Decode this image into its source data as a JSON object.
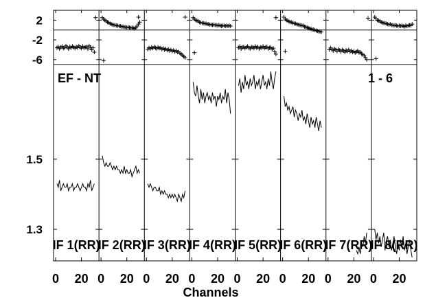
{
  "chart_data": {
    "type": "line",
    "annotation_left": "EF - NT",
    "annotation_right": "1 - 6",
    "xlabel": "Channels",
    "x_ticks": [
      "0",
      "20"
    ],
    "x_range": [
      0,
      32
    ],
    "phase_panel": {
      "ylim": [
        -7,
        4
      ],
      "y_ticks": [
        "2",
        "-2",
        "-6"
      ],
      "y_tick_values": [
        2,
        -2,
        -6
      ],
      "zero_line": 0
    },
    "amp_panel": {
      "ylim": [
        1.21,
        1.77
      ],
      "y_ticks": [
        "1.5",
        "1.3"
      ],
      "y_tick_values": [
        1.5,
        1.3
      ]
    },
    "series": [
      {
        "name": "IF 1(RR)",
        "amplitude": [
          1.43,
          1.42,
          1.44,
          1.41,
          1.42,
          1.43,
          1.42,
          1.42,
          1.43,
          1.41,
          1.42,
          1.42,
          1.43,
          1.41,
          1.42,
          1.42,
          1.43,
          1.42,
          1.41,
          1.42,
          1.43,
          1.42,
          1.42,
          1.41,
          1.43,
          1.42,
          1.44,
          1.41,
          1.42,
          1.43
        ],
        "phase": [
          -3.6,
          -3.4,
          -3.8,
          -3.5,
          -3.3,
          -3.7,
          -3.6,
          -3.2,
          -3.5,
          -3.8,
          -3.4,
          -3.6,
          -3.3,
          -3.5,
          -3.7,
          -3.4,
          -3.6,
          -3.2,
          -3.5,
          -3.7,
          -3.3,
          -3.6,
          -3.5,
          -3.4,
          -3.8,
          -3.2,
          -3.5,
          -4.0,
          -3.6,
          -4.5
        ],
        "phase_outliers": [
          {
            "x": 31,
            "y": 2.5
          }
        ]
      },
      {
        "name": "IF 2(RR)",
        "amplitude": [
          1.51,
          1.49,
          1.48,
          1.49,
          1.48,
          1.48,
          1.49,
          1.48,
          1.47,
          1.48,
          1.47,
          1.48,
          1.47,
          1.47,
          1.46,
          1.47,
          1.46,
          1.48,
          1.46,
          1.47,
          1.46,
          1.46,
          1.47,
          1.45,
          1.46,
          1.47,
          1.48,
          1.46,
          1.47,
          1.46
        ],
        "phase": [
          2.5,
          2.2,
          2.0,
          1.8,
          1.6,
          1.5,
          1.3,
          1.2,
          1.1,
          1.0,
          1.0,
          0.9,
          0.9,
          0.8,
          0.8,
          0.7,
          0.7,
          0.6,
          0.6,
          0.5,
          0.6,
          0.5,
          0.4,
          0.5,
          0.4,
          0.3,
          0.5,
          0.8,
          1.2,
          1.6
        ],
        "phase_outliers": [
          {
            "x": 2,
            "y": -6.2
          },
          {
            "x": 29,
            "y": 2.6
          }
        ]
      },
      {
        "name": "IF 3(RR)",
        "amplitude": [
          1.43,
          1.42,
          1.43,
          1.42,
          1.41,
          1.42,
          1.42,
          1.41,
          1.41,
          1.42,
          1.4,
          1.41,
          1.4,
          1.41,
          1.4,
          1.4,
          1.39,
          1.4,
          1.39,
          1.4,
          1.39,
          1.4,
          1.39,
          1.38,
          1.4,
          1.39,
          1.38,
          1.4,
          1.39,
          1.41
        ],
        "phase": [
          -3.9,
          -3.6,
          -3.8,
          -3.5,
          -3.7,
          -3.4,
          -3.6,
          -3.8,
          -3.5,
          -3.7,
          -3.6,
          -3.9,
          -3.7,
          -4.0,
          -3.8,
          -4.1,
          -3.9,
          -4.2,
          -4.0,
          -4.3,
          -4.1,
          -4.4,
          -4.2,
          -4.5,
          -4.4,
          -4.7,
          -4.9,
          -5.1,
          -5.4,
          -5.6
        ],
        "phase_outliers": [
          {
            "x": 30,
            "y": 2.6
          }
        ]
      },
      {
        "name": "IF 4(RR)",
        "amplitude": [
          1.72,
          1.69,
          1.68,
          1.71,
          1.68,
          1.66,
          1.7,
          1.67,
          1.69,
          1.66,
          1.68,
          1.69,
          1.67,
          1.68,
          1.66,
          1.69,
          1.67,
          1.68,
          1.65,
          1.68,
          1.67,
          1.69,
          1.66,
          1.68,
          1.67,
          1.7,
          1.66,
          1.69,
          1.67,
          1.63
        ],
        "phase": [
          2.5,
          2.2,
          2.0,
          1.9,
          1.8,
          1.6,
          1.5,
          1.4,
          1.4,
          1.3,
          1.3,
          1.2,
          1.2,
          1.1,
          1.1,
          1.0,
          1.1,
          1.0,
          1.0,
          0.9,
          1.0,
          0.9,
          0.8,
          0.9,
          0.9,
          0.8,
          0.9,
          0.8,
          0.9,
          0.8
        ],
        "phase_outliers": [
          {
            "x": 2,
            "y": -4.6
          }
        ]
      },
      {
        "name": "IF 5(RR)",
        "amplitude": [
          1.71,
          1.73,
          1.69,
          1.72,
          1.7,
          1.74,
          1.71,
          1.72,
          1.7,
          1.73,
          1.71,
          1.72,
          1.74,
          1.7,
          1.72,
          1.71,
          1.73,
          1.7,
          1.72,
          1.74,
          1.71,
          1.72,
          1.7,
          1.73,
          1.71,
          1.75,
          1.72,
          1.7,
          1.73,
          1.75
        ],
        "phase": [
          -3.6,
          -3.3,
          -3.8,
          -3.5,
          -3.4,
          -3.7,
          -3.5,
          -3.3,
          -3.6,
          -3.8,
          -3.4,
          -3.5,
          -3.7,
          -3.3,
          -3.6,
          -3.4,
          -3.8,
          -3.5,
          -3.6,
          -3.3,
          -3.7,
          -3.5,
          -3.4,
          -3.8,
          -3.6,
          -3.5,
          -3.9,
          -3.7,
          -4.4,
          -4.9
        ],
        "phase_outliers": [
          {
            "x": 30,
            "y": 2.5
          }
        ]
      },
      {
        "name": "IF 6(RR)",
        "amplitude": [
          1.68,
          1.65,
          1.66,
          1.64,
          1.65,
          1.63,
          1.64,
          1.65,
          1.62,
          1.64,
          1.63,
          1.61,
          1.63,
          1.62,
          1.64,
          1.61,
          1.62,
          1.6,
          1.63,
          1.61,
          1.59,
          1.62,
          1.6,
          1.61,
          1.59,
          1.62,
          1.6,
          1.58,
          1.61,
          1.59
        ],
        "phase": [
          2.6,
          2.2,
          2.0,
          1.9,
          1.7,
          1.6,
          1.6,
          1.4,
          1.3,
          1.3,
          1.2,
          1.1,
          1.0,
          1.0,
          0.9,
          0.9,
          0.7,
          0.6,
          0.5,
          0.4,
          0.3,
          0.2,
          0.1,
          0.1,
          0.0,
          -0.1,
          -0.2,
          -0.3,
          -0.3,
          -0.4
        ],
        "phase_outliers": [
          {
            "x": 2,
            "y": -4.3
          }
        ]
      },
      {
        "name": "IF 7(RR)",
        "amplitude": [
          null,
          null,
          null,
          null,
          null,
          null,
          null,
          null,
          null,
          null,
          null,
          null,
          null,
          null,
          null,
          null,
          null,
          null,
          null,
          null,
          null,
          1.24,
          1.23,
          1.25,
          1.23,
          1.26,
          1.25,
          1.28,
          1.26,
          1.29
        ],
        "phase": [
          -4.0,
          -3.6,
          -3.9,
          -4.2,
          -3.8,
          -4.0,
          -4.3,
          -3.9,
          -4.1,
          -4.4,
          -4.0,
          -4.2,
          -4.5,
          -4.1,
          -4.3,
          -4.0,
          -4.4,
          -4.2,
          -4.5,
          -4.3,
          -4.6,
          -4.4,
          -4.2,
          -4.6,
          -4.5,
          -4.8,
          -5.0,
          -5.2,
          -5.6,
          -6.0
        ],
        "phase_outliers": [
          {
            "x": 31,
            "y": 2.4
          }
        ]
      },
      {
        "name": "IF 8(RR)",
        "amplitude": [
          1.3,
          1.27,
          1.29,
          1.26,
          1.28,
          1.25,
          1.27,
          1.29,
          1.24,
          1.27,
          1.28,
          1.25,
          1.27,
          1.24,
          1.26,
          1.28,
          1.25,
          1.23,
          1.26,
          1.24,
          1.27,
          1.25,
          1.28,
          1.24,
          1.26,
          1.23,
          1.25,
          1.27,
          1.24,
          1.22
        ],
        "phase": [
          2.6,
          2.3,
          2.0,
          1.9,
          1.8,
          1.6,
          1.5,
          1.4,
          1.4,
          1.3,
          1.2,
          1.1,
          1.2,
          1.0,
          1.0,
          0.9,
          1.0,
          0.9,
          0.8,
          0.9,
          0.8,
          0.9,
          0.8,
          0.7,
          0.9,
          0.8,
          0.9,
          1.0,
          0.9,
          1.2
        ],
        "phase_outliers": [
          {
            "x": 2,
            "y": -5.8
          }
        ]
      }
    ]
  }
}
